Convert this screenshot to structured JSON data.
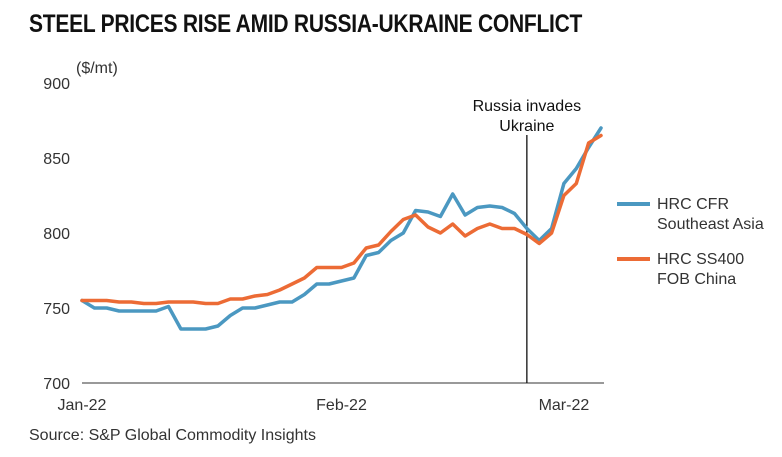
{
  "title": "STEEL PRICES RISE AMID RUSSIA-UKRAINE CONFLICT",
  "source": "Source: S&P Global Commodity Insights",
  "chart_data": {
    "type": "line",
    "ylabel": "($/mt)",
    "ylim": [
      700,
      900
    ],
    "y_ticks": [
      700,
      750,
      800,
      850,
      900
    ],
    "x_ticks": [
      {
        "label": "Jan-22",
        "index": 0
      },
      {
        "label": "Feb-22",
        "index": 21
      },
      {
        "label": "Mar-22",
        "index": 39
      }
    ],
    "grid": false,
    "legend_position": "right",
    "annotation": {
      "line1": "Russia invades",
      "line2": "Ukraine",
      "index": 36
    },
    "series": [
      {
        "name_line1": "HRC CFR",
        "name_line2": "Southeast Asia",
        "color": "#4b98c1",
        "values": [
          755,
          750,
          750,
          748,
          748,
          748,
          748,
          751,
          736,
          736,
          736,
          738,
          745,
          750,
          750,
          752,
          754,
          754,
          759,
          766,
          766,
          768,
          770,
          785,
          787,
          795,
          800,
          815,
          814,
          811,
          826,
          812,
          817,
          818,
          817,
          813,
          803,
          795,
          803,
          833,
          843,
          857,
          870
        ]
      },
      {
        "name_line1": "HRC SS400",
        "name_line2": "FOB China",
        "color": "#ec6b35",
        "values": [
          755,
          755,
          755,
          754,
          754,
          753,
          753,
          754,
          754,
          754,
          753,
          753,
          756,
          756,
          758,
          759,
          762,
          766,
          770,
          777,
          777,
          777,
          780,
          790,
          792,
          801,
          809,
          812,
          804,
          800,
          806,
          798,
          803,
          806,
          803,
          803,
          799,
          793,
          800,
          825,
          833,
          860,
          865
        ]
      }
    ]
  }
}
